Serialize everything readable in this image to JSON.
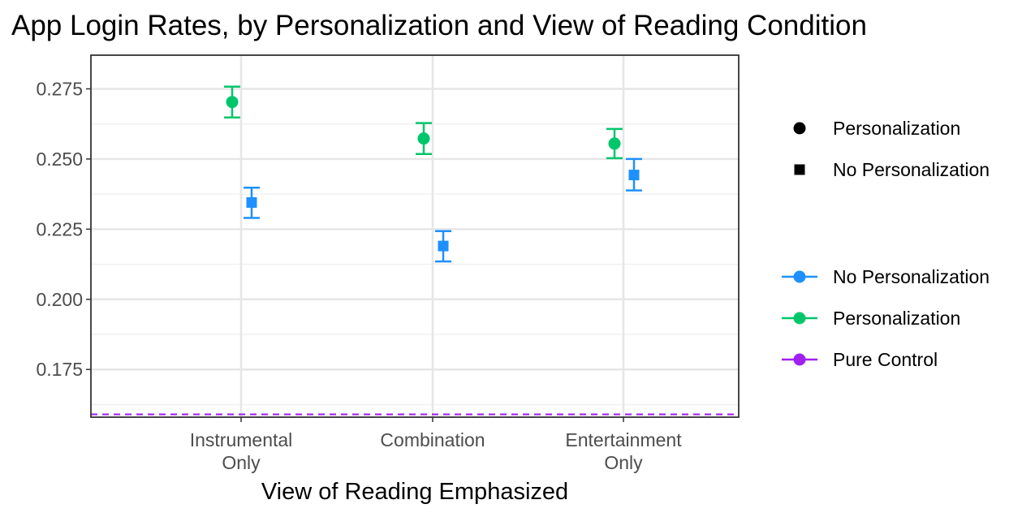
{
  "chart_data": {
    "type": "scatter",
    "title": "App Login Rates, by Personalization and View of Reading Condition",
    "xlabel": "View of Reading Emphasized",
    "ylabel": "",
    "categories": [
      [
        "Instrumental",
        "Only"
      ],
      [
        "Combination"
      ],
      [
        "Entertainment",
        "Only"
      ]
    ],
    "ylim": [
      0.158,
      0.287
    ],
    "yticks": [
      "0.175",
      "0.200",
      "0.225",
      "0.250",
      "0.275"
    ],
    "grid": true,
    "legend_position": "right",
    "series": [
      {
        "name": "Personalization",
        "shape": "circle",
        "color": "#00c66b",
        "values": [
          0.2703,
          0.2573,
          0.2555
        ],
        "lower": [
          0.2648,
          0.2518,
          0.2503
        ],
        "upper": [
          0.2758,
          0.2628,
          0.2607
        ]
      },
      {
        "name": "No Personalization",
        "shape": "square",
        "color": "#1e90ff",
        "values": [
          0.2345,
          0.219,
          0.2443
        ],
        "lower": [
          0.229,
          0.2135,
          0.2388
        ],
        "upper": [
          0.2398,
          0.2243,
          0.25
        ]
      }
    ],
    "reference_lines": [
      {
        "name": "Pure Control",
        "value": 0.159,
        "color": "#a020f0",
        "style": "dashed"
      }
    ],
    "legend_shape": [
      {
        "label": "Personalization",
        "symbol": "circle"
      },
      {
        "label": "No Personalization",
        "symbol": "square"
      }
    ],
    "legend_color": [
      {
        "label": "No Personalization",
        "color": "#1e90ff"
      },
      {
        "label": "Personalization",
        "color": "#00c66b"
      },
      {
        "label": "Pure Control",
        "color": "#a020f0"
      }
    ]
  }
}
